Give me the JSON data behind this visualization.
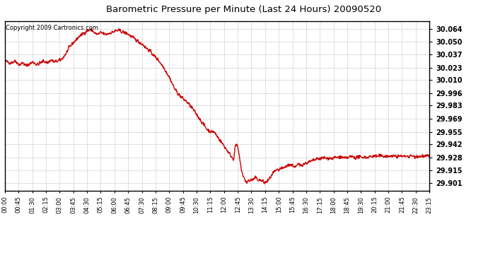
{
  "title": "Barometric Pressure per Minute (Last 24 Hours) 20090520",
  "copyright": "Copyright 2009 Cartronics.com",
  "background_color": "#ffffff",
  "plot_background": "#ffffff",
  "line_color": "#cc0000",
  "line_width": 1.0,
  "yticks": [
    29.901,
    29.915,
    29.928,
    29.942,
    29.955,
    29.969,
    29.983,
    29.996,
    30.01,
    30.023,
    30.037,
    30.05,
    30.064
  ],
  "ylim": [
    29.893,
    30.072
  ],
  "xtick_labels": [
    "00:00",
    "00:45",
    "01:30",
    "02:15",
    "03:00",
    "03:45",
    "04:30",
    "05:15",
    "06:00",
    "06:45",
    "07:30",
    "08:15",
    "09:00",
    "09:45",
    "10:30",
    "11:15",
    "12:00",
    "12:45",
    "13:30",
    "14:15",
    "15:00",
    "15:45",
    "16:30",
    "17:15",
    "18:00",
    "18:45",
    "19:30",
    "20:15",
    "21:00",
    "21:45",
    "22:30",
    "23:15"
  ],
  "key_points": [
    [
      0,
      30.03
    ],
    [
      30,
      30.028
    ],
    [
      60,
      30.03
    ],
    [
      80,
      30.026
    ],
    [
      100,
      30.028
    ],
    [
      120,
      30.025
    ],
    [
      140,
      30.027
    ],
    [
      160,
      30.029
    ],
    [
      180,
      30.026
    ],
    [
      200,
      30.028
    ],
    [
      220,
      30.03
    ],
    [
      240,
      30.028
    ],
    [
      260,
      30.031
    ],
    [
      280,
      30.029
    ],
    [
      300,
      30.03
    ],
    [
      315,
      30.031
    ],
    [
      330,
      30.034
    ],
    [
      345,
      30.038
    ],
    [
      360,
      30.043
    ],
    [
      375,
      30.047
    ],
    [
      390,
      30.05
    ],
    [
      405,
      30.053
    ],
    [
      420,
      30.056
    ],
    [
      435,
      30.058
    ],
    [
      450,
      30.06
    ],
    [
      465,
      30.062
    ],
    [
      480,
      30.063
    ],
    [
      495,
      30.062
    ],
    [
      510,
      30.059
    ],
    [
      525,
      30.058
    ],
    [
      540,
      30.06
    ],
    [
      555,
      30.059
    ],
    [
      570,
      30.058
    ],
    [
      585,
      30.059
    ],
    [
      600,
      30.06
    ],
    [
      615,
      30.061
    ],
    [
      630,
      30.062
    ],
    [
      645,
      30.062
    ],
    [
      660,
      30.061
    ],
    [
      675,
      30.06
    ],
    [
      690,
      30.059
    ],
    [
      705,
      30.057
    ],
    [
      720,
      30.055
    ],
    [
      735,
      30.053
    ],
    [
      750,
      30.051
    ],
    [
      765,
      30.049
    ],
    [
      780,
      30.047
    ],
    [
      795,
      30.044
    ],
    [
      810,
      30.042
    ],
    [
      825,
      30.039
    ],
    [
      840,
      30.036
    ],
    [
      855,
      30.033
    ],
    [
      870,
      30.03
    ],
    [
      885,
      30.026
    ],
    [
      900,
      30.022
    ],
    [
      915,
      30.017
    ],
    [
      930,
      30.012
    ],
    [
      945,
      30.006
    ],
    [
      960,
      30.0
    ],
    [
      975,
      29.996
    ],
    [
      990,
      29.993
    ],
    [
      1005,
      29.99
    ],
    [
      1020,
      29.988
    ],
    [
      1035,
      29.985
    ],
    [
      1050,
      29.982
    ],
    [
      1065,
      29.978
    ],
    [
      1080,
      29.974
    ],
    [
      1095,
      29.97
    ],
    [
      1110,
      29.966
    ],
    [
      1125,
      29.962
    ],
    [
      1140,
      29.958
    ],
    [
      1155,
      29.956
    ],
    [
      1170,
      29.955
    ],
    [
      1175,
      29.956
    ],
    [
      1180,
      29.955
    ],
    [
      1185,
      29.954
    ],
    [
      1200,
      29.95
    ],
    [
      1215,
      29.946
    ],
    [
      1230,
      29.942
    ],
    [
      1245,
      29.938
    ],
    [
      1260,
      29.934
    ],
    [
      1275,
      29.93
    ],
    [
      1290,
      29.926
    ],
    [
      1300,
      29.94
    ],
    [
      1305,
      29.942
    ],
    [
      1310,
      29.94
    ],
    [
      1315,
      29.938
    ],
    [
      1320,
      29.932
    ],
    [
      1325,
      29.926
    ],
    [
      1330,
      29.92
    ],
    [
      1335,
      29.915
    ],
    [
      1340,
      29.911
    ],
    [
      1345,
      29.908
    ],
    [
      1350,
      29.906
    ],
    [
      1355,
      29.904
    ],
    [
      1360,
      29.903
    ],
    [
      1365,
      29.902
    ],
    [
      1370,
      29.903
    ],
    [
      1375,
      29.904
    ],
    [
      1380,
      29.903
    ],
    [
      1385,
      29.904
    ],
    [
      1390,
      29.905
    ],
    [
      1395,
      29.904
    ],
    [
      1400,
      29.905
    ],
    [
      1410,
      29.906
    ],
    [
      1415,
      29.907
    ],
    [
      1420,
      29.906
    ],
    [
      1425,
      29.905
    ],
    [
      1440,
      29.904
    ],
    [
      1455,
      29.903
    ],
    [
      1460,
      29.902
    ],
    [
      1465,
      29.901
    ],
    [
      1470,
      29.902
    ],
    [
      1480,
      29.903
    ],
    [
      1490,
      29.905
    ],
    [
      1500,
      29.908
    ],
    [
      1510,
      29.91
    ],
    [
      1515,
      29.912
    ],
    [
      1520,
      29.913
    ],
    [
      1530,
      29.914
    ],
    [
      1540,
      29.915
    ],
    [
      1545,
      29.914
    ],
    [
      1550,
      29.916
    ],
    [
      1560,
      29.917
    ],
    [
      1565,
      29.916
    ],
    [
      1575,
      29.917
    ],
    [
      1580,
      29.918
    ],
    [
      1590,
      29.919
    ],
    [
      1600,
      29.92
    ],
    [
      1605,
      29.921
    ],
    [
      1620,
      29.92
    ],
    [
      1630,
      29.919
    ],
    [
      1640,
      29.918
    ],
    [
      1650,
      29.92
    ],
    [
      1660,
      29.921
    ],
    [
      1665,
      29.92
    ],
    [
      1680,
      29.921
    ],
    [
      1695,
      29.922
    ],
    [
      1710,
      29.923
    ],
    [
      1725,
      29.924
    ],
    [
      1740,
      29.925
    ],
    [
      1755,
      29.926
    ],
    [
      1770,
      29.927
    ],
    [
      1785,
      29.927
    ],
    [
      1800,
      29.928
    ],
    [
      1815,
      29.927
    ],
    [
      1830,
      29.928
    ],
    [
      1845,
      29.927
    ],
    [
      1860,
      29.928
    ],
    [
      1875,
      29.928
    ],
    [
      1890,
      29.929
    ],
    [
      1905,
      29.928
    ],
    [
      1920,
      29.927
    ],
    [
      1935,
      29.928
    ],
    [
      1950,
      29.929
    ],
    [
      1960,
      29.929
    ],
    [
      1980,
      29.928
    ],
    [
      1995,
      29.929
    ],
    [
      2010,
      29.928
    ],
    [
      2025,
      29.929
    ],
    [
      2040,
      29.928
    ],
    [
      2055,
      29.929
    ],
    [
      2070,
      29.929
    ],
    [
      2085,
      29.93
    ],
    [
      2100,
      29.929
    ],
    [
      2115,
      29.93
    ],
    [
      2130,
      29.929
    ],
    [
      2145,
      29.93
    ],
    [
      2160,
      29.929
    ],
    [
      2175,
      29.93
    ],
    [
      2190,
      29.929
    ],
    [
      2205,
      29.93
    ],
    [
      2220,
      29.929
    ],
    [
      2235,
      29.93
    ],
    [
      2250,
      29.929
    ],
    [
      2265,
      29.93
    ],
    [
      2280,
      29.929
    ],
    [
      2295,
      29.93
    ],
    [
      2310,
      29.929
    ],
    [
      2325,
      29.93
    ],
    [
      2340,
      29.929
    ],
    [
      2355,
      29.93
    ],
    [
      2370,
      29.929
    ],
    [
      2385,
      29.93
    ],
    [
      2395,
      29.929
    ]
  ]
}
